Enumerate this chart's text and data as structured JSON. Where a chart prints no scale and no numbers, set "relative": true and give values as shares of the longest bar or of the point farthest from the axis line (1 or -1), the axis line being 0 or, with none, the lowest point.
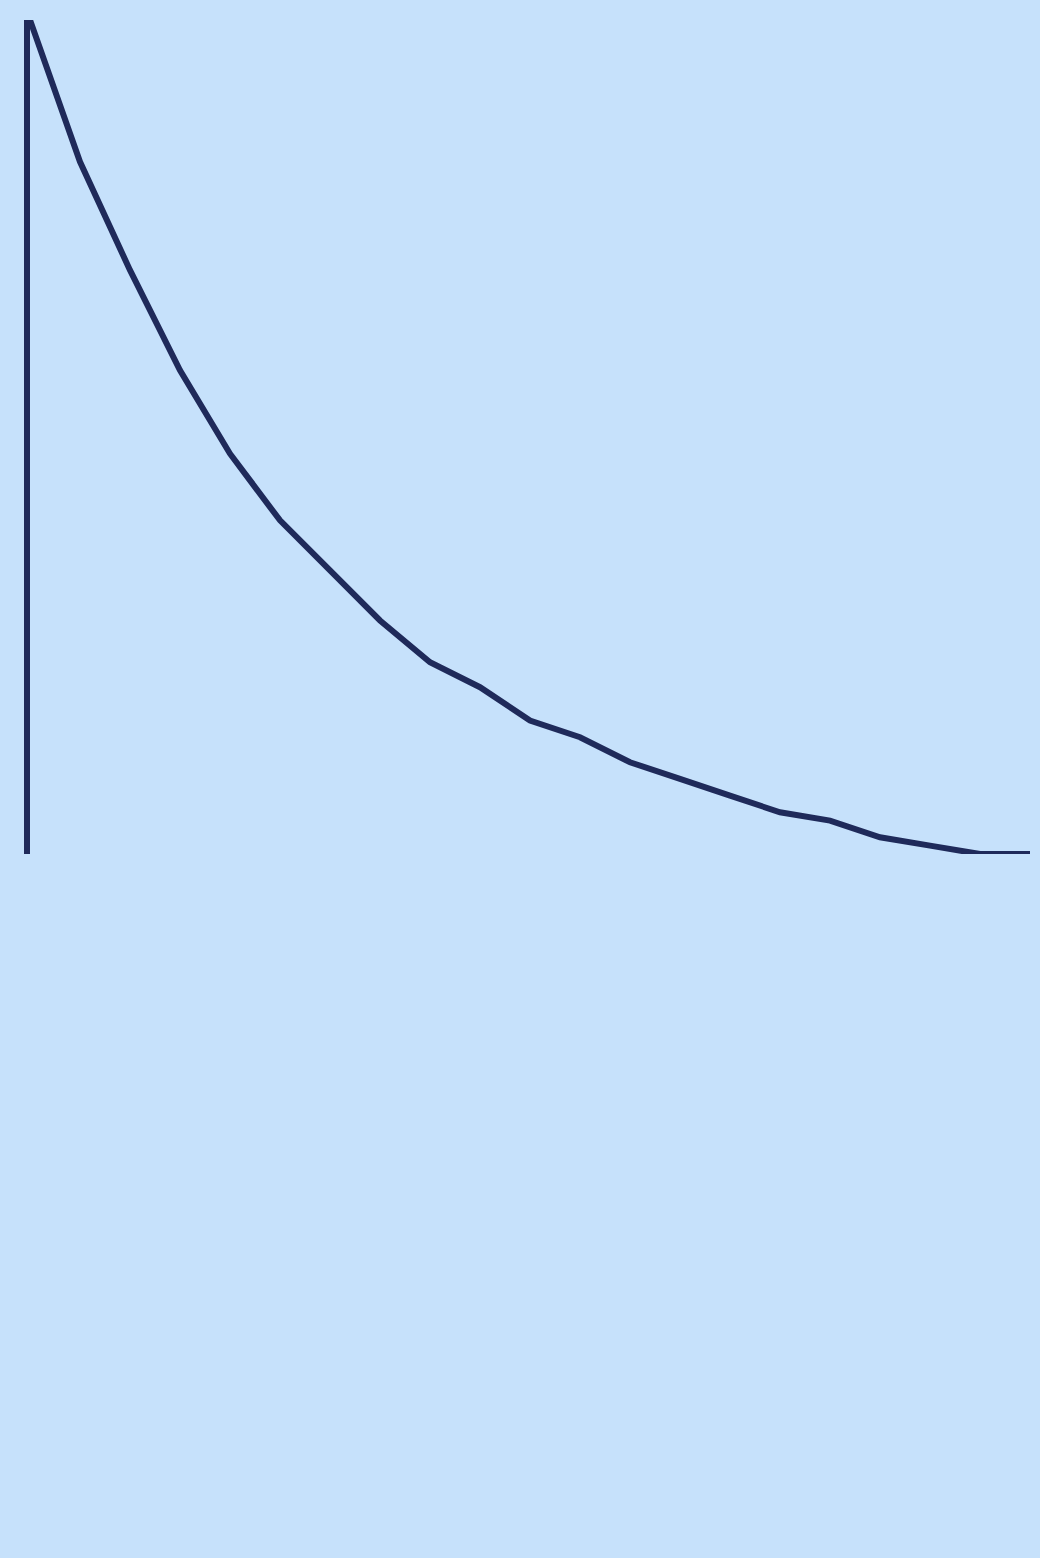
{
  "chart_data": {
    "type": "line",
    "relative": true,
    "grid": false,
    "marker": "none",
    "line_style": "solid",
    "categories": [
      null,
      null,
      null,
      null,
      null,
      null,
      null,
      null,
      null,
      null,
      null,
      null,
      null,
      null,
      null,
      null,
      null,
      null,
      null,
      null,
      null
    ],
    "series": [
      {
        "color": "#1f2a5a",
        "values": [
          1,
          0.83,
          0.7,
          0.58,
          0.48,
          0.4,
          0.34,
          0.28,
          0.23,
          0.2,
          0.16,
          0.14,
          0.11,
          0.09,
          0.07,
          0.05,
          0.04,
          0.02,
          0.01,
          0,
          0
        ]
      }
    ]
  }
}
